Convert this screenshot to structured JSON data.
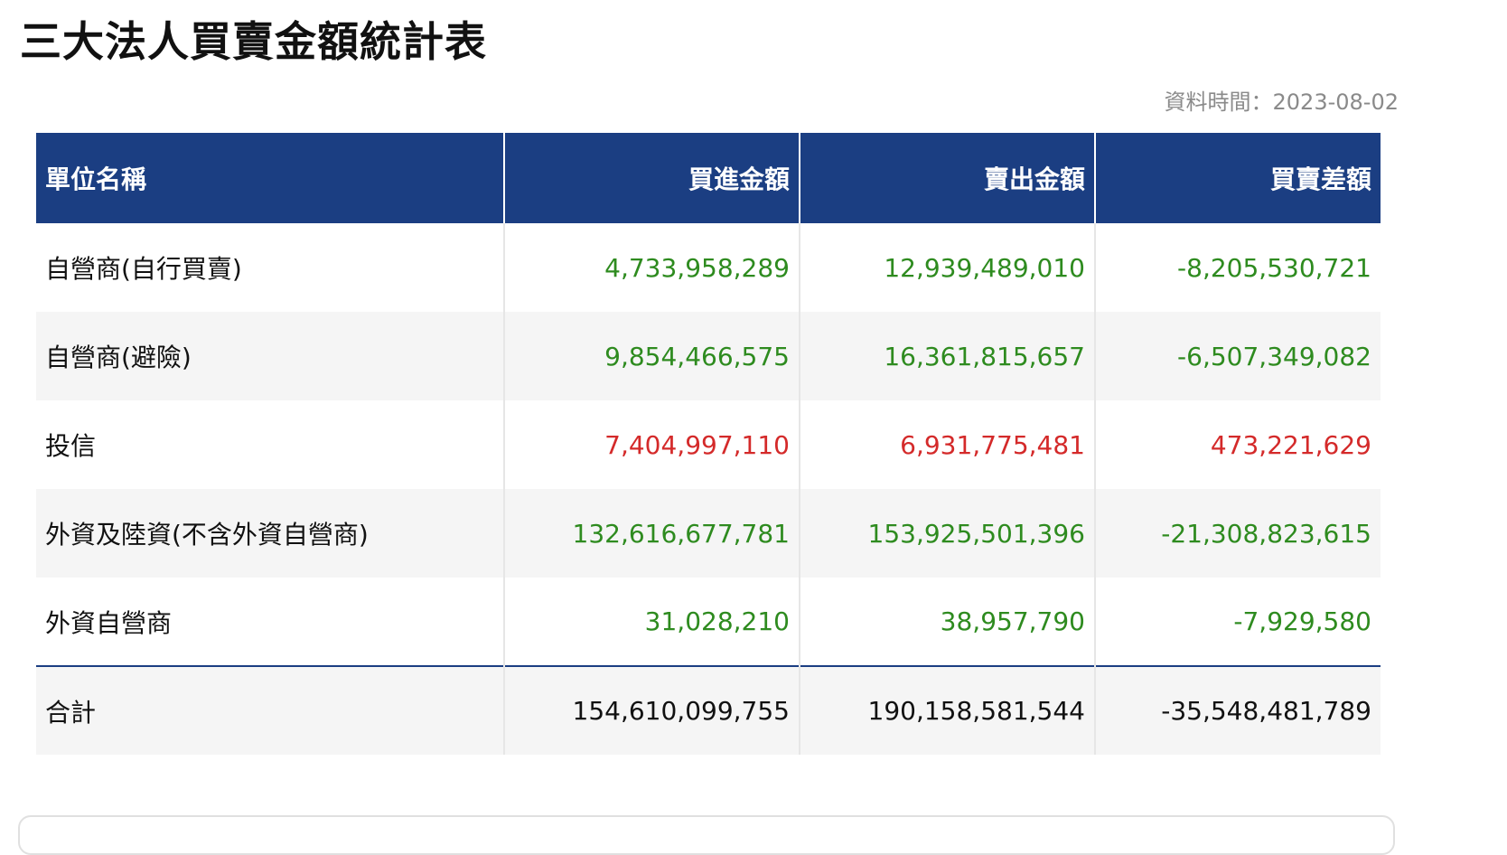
{
  "page": {
    "title": "三大法人買賣金額統計表",
    "data_time": "資料時間：2023-08-02"
  },
  "table": {
    "headers": [
      "單位名稱",
      "買進金額",
      "賣出金額",
      "買賣差額"
    ],
    "rows": [
      {
        "name": "自營商(自行買賣)",
        "buy": "4,733,958,289",
        "sell": "12,939,489,010",
        "diff": "-8,205,530,721",
        "trend": "neg"
      },
      {
        "name": "自營商(避險)",
        "buy": "9,854,466,575",
        "sell": "16,361,815,657",
        "diff": "-6,507,349,082",
        "trend": "neg"
      },
      {
        "name": "投信",
        "buy": "7,404,997,110",
        "sell": "6,931,775,481",
        "diff": "473,221,629",
        "trend": "pos"
      },
      {
        "name": "外資及陸資(不含外資自營商)",
        "buy": "132,616,677,781",
        "sell": "153,925,501,396",
        "diff": "-21,308,823,615",
        "trend": "neg"
      },
      {
        "name": "外資自營商",
        "buy": "31,028,210",
        "sell": "38,957,790",
        "diff": "-7,929,580",
        "trend": "neg"
      }
    ],
    "total": {
      "name": "合計",
      "buy": "154,610,099,755",
      "sell": "190,158,581,544",
      "diff": "-35,548,481,789"
    }
  },
  "colors": {
    "header_bg": "#1b3e82",
    "negative": "#2e8b1f",
    "positive": "#d42a2a"
  }
}
